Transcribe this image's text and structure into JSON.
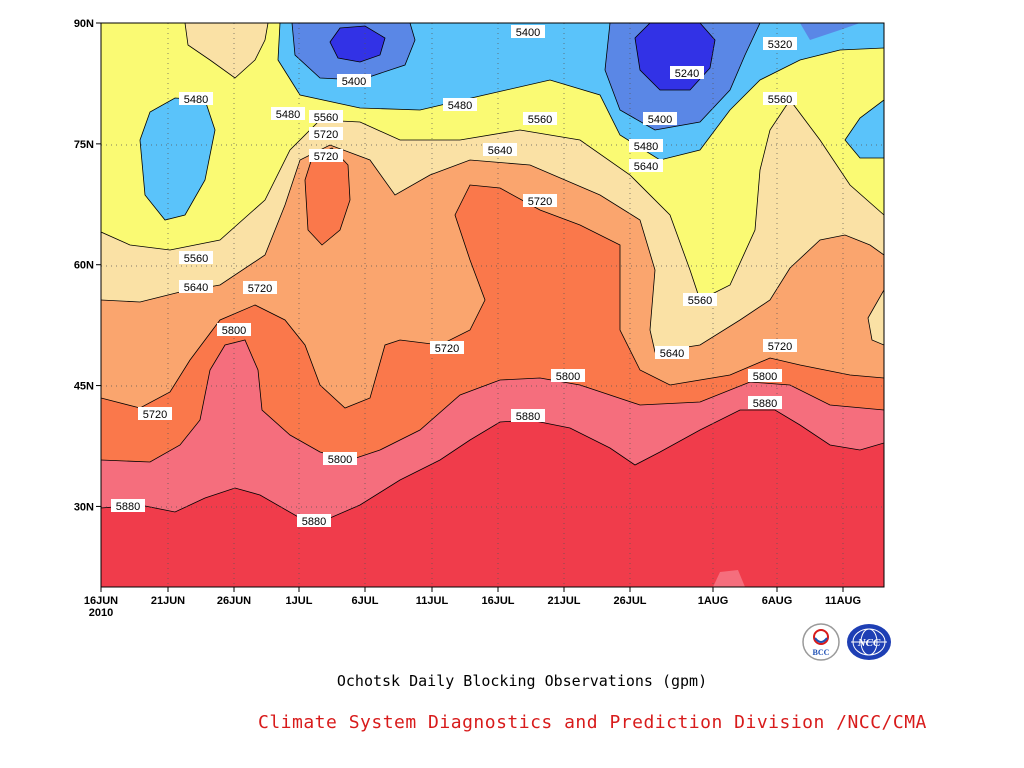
{
  "chart_data": {
    "type": "contour",
    "title": "Ochotsk Daily Blocking Observations (gpm)",
    "xlabel": "",
    "ylabel": "",
    "x_ticks": [
      "16JUN\n2010",
      "21JUN",
      "26JUN",
      "1JUL",
      "6JUL",
      "11JUL",
      "16JUL",
      "21JUL",
      "26JUL",
      "1AUG",
      "6AUG",
      "11AUG"
    ],
    "y_ticks": [
      "90N",
      "75N",
      "60N",
      "45N",
      "30N"
    ],
    "y_tick_values": [
      90,
      75,
      60,
      45,
      30
    ],
    "ylim": [
      20,
      90
    ],
    "xlim_days": [
      0,
      60
    ],
    "contour_levels": [
      5240,
      5320,
      5400,
      5480,
      5560,
      5640,
      5720,
      5800,
      5880
    ],
    "contour_labels": [
      "5400",
      "5480",
      "5240",
      "5400",
      "5480",
      "5560",
      "5480",
      "5560",
      "5320",
      "5400",
      "5480",
      "5640",
      "5720",
      "5640",
      "5560",
      "5720",
      "5560",
      "5640",
      "5720",
      "5800",
      "5720",
      "5560",
      "5640",
      "5720",
      "5720",
      "5800",
      "5800",
      "5880",
      "5880",
      "5720",
      "5800",
      "5880",
      "5880"
    ],
    "colors": {
      "c_lt5240": "#3232e6",
      "c_5240": "#5a87e6",
      "c_5320": "#5a87e6",
      "c_5400": "#5ac3fa",
      "c_5480": "#fafa73",
      "c_5560": "#fae1a5",
      "c_5640": "#faa56e",
      "c_5720": "#fa784b",
      "c_5800": "#f56e7d",
      "c_5880": "#f03c4b"
    }
  },
  "footer": {
    "caption": "Ochotsk Daily Blocking Observations (gpm)",
    "credit": "Climate System Diagnostics and Prediction Division /NCC/CMA",
    "logo_left_text": "BCC",
    "logo_right_text": "NCC"
  }
}
